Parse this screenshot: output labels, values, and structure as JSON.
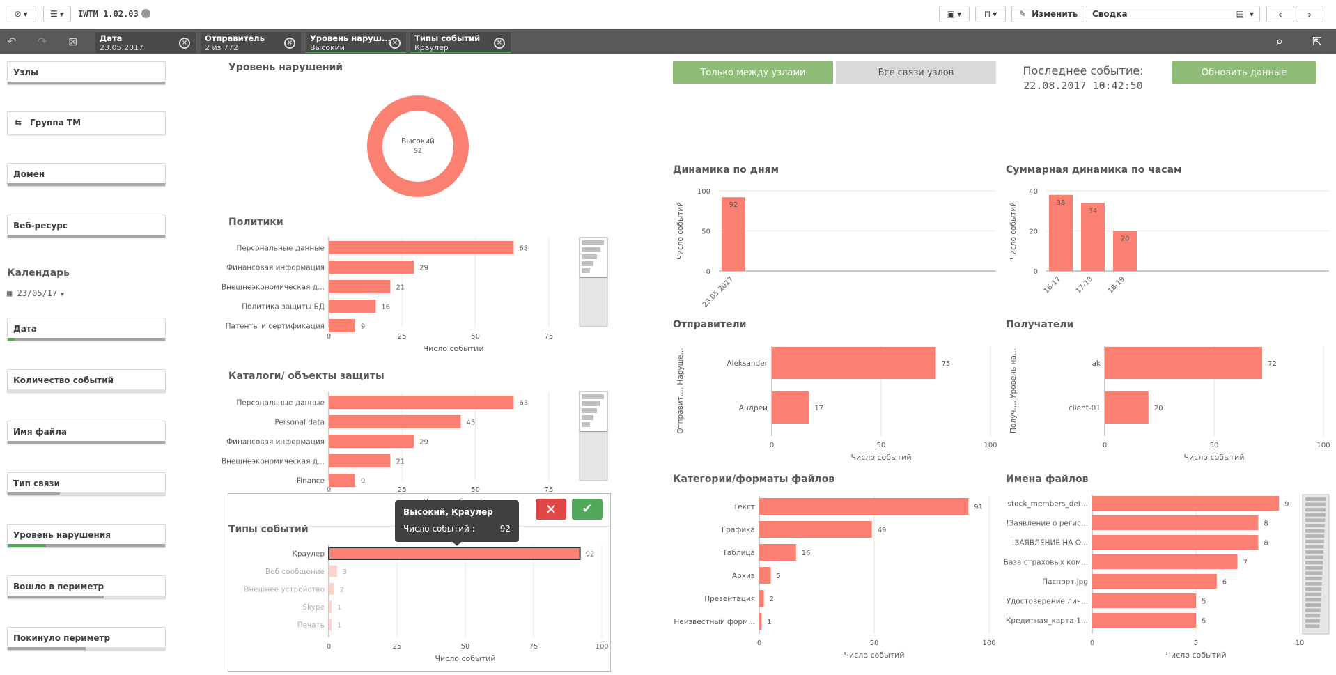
{
  "app": {
    "title": "IWTM 1.02.03"
  },
  "toolbar": {
    "edit_label": "Изменить",
    "sheet_title": "Сводка"
  },
  "selections": [
    {
      "title": "Дата",
      "value": "23.05.2017"
    },
    {
      "title": "Отправитель",
      "value": "2 из 772"
    },
    {
      "title": "Уровень наруш...",
      "value": "Высокий"
    },
    {
      "title": "Типы событий",
      "value": "Краулер"
    }
  ],
  "filters": {
    "nodes": "Узлы",
    "tm_group": "Группа ТМ",
    "domain": "Домен",
    "web_resource": "Веб-ресурс",
    "calendar_title": "Календарь",
    "calendar_value": "23/05/17",
    "date": "Дата",
    "event_count": "Количество событий",
    "file_name": "Имя файла",
    "link_type": "Тип связи",
    "violation_level": "Уровень нарушения",
    "entered_perimeter": "Вошло в периметр",
    "left_perimeter": "Покинуло периметр"
  },
  "buttons": {
    "only_between_nodes": "Только между узлами",
    "all_node_links": "Все связи узлов",
    "refresh": "Обновить данные"
  },
  "last_event": {
    "label": "Последнее событие:",
    "value": "22.08.2017 10:42:50"
  },
  "colors": {
    "accent": "#fa8072",
    "green": "#8fbc76",
    "selbar": "#595959"
  },
  "tooltip": {
    "title": "Высокий, Краулер",
    "label": "Число событий :",
    "value": "92"
  },
  "chart_data": [
    {
      "id": "violation",
      "type": "pie",
      "title": "Уровень нарушений",
      "categories": [
        "Высокий"
      ],
      "values": [
        92
      ]
    },
    {
      "id": "policies",
      "type": "bar",
      "title": "Политики",
      "xlabel": "Число событий",
      "categories": [
        "Персональные данные",
        "Финансовая информация",
        "Внешнеэкономическая д...",
        "Политика защиты БД",
        "Патенты и сертификация"
      ],
      "values": [
        63,
        29,
        21,
        16,
        9
      ],
      "xlim": [
        0,
        85
      ],
      "ticks": [
        0,
        25,
        50,
        75
      ]
    },
    {
      "id": "catalogs",
      "type": "bar",
      "title": "Каталоги/ объекты защиты",
      "xlabel": "Число событий",
      "categories": [
        "Персональные данные",
        "Personal data",
        "Финансовая информация",
        "Внешнеэкономическая д...",
        "Finance"
      ],
      "values": [
        63,
        45,
        29,
        21,
        9
      ],
      "xlim": [
        0,
        85
      ],
      "ticks": [
        0,
        25,
        50,
        75
      ]
    },
    {
      "id": "event_types",
      "type": "bar",
      "title": "Типы событий",
      "xlabel": "Число событий",
      "categories": [
        "Краулер",
        "Веб сообщение",
        "Внешнее устройство",
        "Skype",
        "Печать"
      ],
      "values": [
        92,
        3,
        2,
        1,
        1
      ],
      "xlim": [
        0,
        100
      ],
      "ticks": [
        0,
        25,
        50,
        75,
        100
      ]
    },
    {
      "id": "daily",
      "type": "bar",
      "title": "Динамика по дням",
      "ylabel": "Число событий",
      "categories": [
        "23.05.2017"
      ],
      "values": [
        92
      ],
      "ylim": [
        0,
        100
      ],
      "ticks": [
        0,
        50,
        100
      ]
    },
    {
      "id": "hourly",
      "type": "bar",
      "title": "Суммарная динамика по часам",
      "ylabel": "Число событий",
      "categories": [
        "16-17",
        "17-18",
        "18-19"
      ],
      "values": [
        38,
        34,
        20
      ],
      "ylim": [
        0,
        40
      ],
      "ticks": [
        0,
        20,
        40
      ]
    },
    {
      "id": "senders",
      "type": "bar",
      "title": "Отправители",
      "ylabel": "Отправит..., Наруше...",
      "xlabel": "Число событий",
      "categories": [
        "Aleksander",
        "Андрей"
      ],
      "values": [
        75,
        17
      ],
      "xlim": [
        0,
        100
      ],
      "ticks": [
        0,
        50,
        100
      ]
    },
    {
      "id": "receivers",
      "type": "bar",
      "title": "Получатели",
      "ylabel": "Получ..., Уровень на...",
      "xlabel": "Число событий",
      "categories": [
        "ak",
        "client-01"
      ],
      "values": [
        72,
        20
      ],
      "xlim": [
        0,
        100
      ],
      "ticks": [
        0,
        50,
        100
      ]
    },
    {
      "id": "file_categories",
      "type": "bar",
      "title": "Категории/форматы файлов",
      "xlabel": "Число событий",
      "categories": [
        "Текст",
        "Графика",
        "Таблица",
        "Архив",
        "Презентация",
        "Неизвестный форм..."
      ],
      "values": [
        91,
        49,
        16,
        5,
        2,
        1
      ],
      "xlim": [
        0,
        100
      ],
      "ticks": [
        0,
        50,
        100
      ]
    },
    {
      "id": "file_names",
      "type": "bar",
      "title": "Имена файлов",
      "xlabel": "Число событий",
      "categories": [
        "stock_members_det...",
        "!Заявление о регис...",
        "!ЗАЯВЛЕНИЕ НА О...",
        "База страховых ком...",
        "Паспорт.jpg",
        "Удостоверение лич...",
        "Кредитная_карта-1..."
      ],
      "values": [
        9,
        8,
        8,
        7,
        6,
        5,
        5
      ],
      "xlim": [
        0,
        10
      ],
      "ticks": [
        0,
        5,
        10
      ]
    }
  ]
}
